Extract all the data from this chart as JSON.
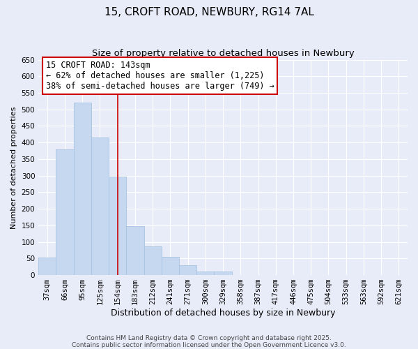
{
  "title": "15, CROFT ROAD, NEWBURY, RG14 7AL",
  "subtitle": "Size of property relative to detached houses in Newbury",
  "xlabel": "Distribution of detached houses by size in Newbury",
  "ylabel": "Number of detached properties",
  "bar_labels": [
    "37sqm",
    "66sqm",
    "95sqm",
    "125sqm",
    "154sqm",
    "183sqm",
    "212sqm",
    "241sqm",
    "271sqm",
    "300sqm",
    "329sqm",
    "358sqm",
    "387sqm",
    "417sqm",
    "446sqm",
    "475sqm",
    "504sqm",
    "533sqm",
    "563sqm",
    "592sqm",
    "621sqm"
  ],
  "bar_values": [
    52,
    380,
    520,
    415,
    298,
    147,
    87,
    55,
    30,
    10,
    10,
    0,
    0,
    0,
    0,
    0,
    0,
    0,
    0,
    0,
    0
  ],
  "bar_color": "#c5d8f0",
  "bar_edge_color": "#a8c4e0",
  "vline_color": "#cc0000",
  "vline_bar_index": 4,
  "annotation_title": "15 CROFT ROAD: 143sqm",
  "annotation_line1": "← 62% of detached houses are smaller (1,225)",
  "annotation_line2": "38% of semi-detached houses are larger (749) →",
  "annotation_box_color": "#ffffff",
  "annotation_box_edge": "#cc0000",
  "ylim": [
    0,
    650
  ],
  "yticks": [
    0,
    50,
    100,
    150,
    200,
    250,
    300,
    350,
    400,
    450,
    500,
    550,
    600,
    650
  ],
  "grid_color": "#d0d8e8",
  "background_color": "#e8ecf8",
  "footnote1": "Contains HM Land Registry data © Crown copyright and database right 2025.",
  "footnote2": "Contains public sector information licensed under the Open Government Licence v3.0.",
  "title_fontsize": 11,
  "subtitle_fontsize": 9.5,
  "xlabel_fontsize": 9,
  "ylabel_fontsize": 8,
  "tick_fontsize": 7.5,
  "annot_fontsize": 8.5,
  "footnote_fontsize": 6.5
}
